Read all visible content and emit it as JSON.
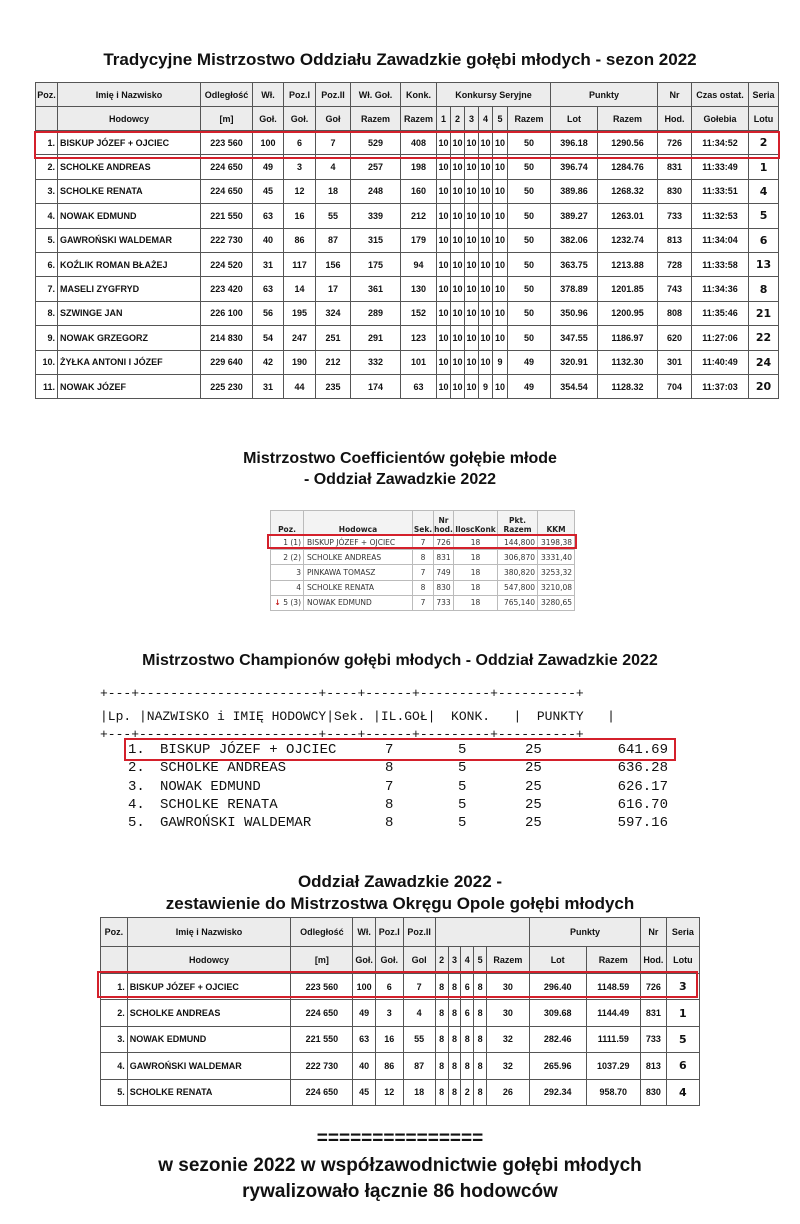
{
  "section1": {
    "title": "Tradycyjne Mistrzostwo Oddziału Zawadzkie gołębi młodych - sezon 2022",
    "header_row1": [
      "Poz.",
      "Imię i Nazwisko",
      "Odległość",
      "Wł.",
      "Poz.I",
      "Poz.II",
      "Wł. Goł.",
      "Konk.",
      "Konkursy Seryjne",
      "Punkty",
      "Nr",
      "Czas ostat.",
      "Seria"
    ],
    "header_row2": [
      "Hodowcy",
      "[m]",
      "Goł.",
      "Goł.",
      "Goł",
      "Razem",
      "Razem",
      "1",
      "2",
      "3",
      "4",
      "5",
      "Razem",
      "Lot",
      "Razem",
      "Hod.",
      "Gołebia",
      "Lotu"
    ],
    "rows": [
      [
        "1.",
        "BISKUP JÓZEF + OJCIEC",
        "223 560",
        "100",
        "6",
        "7",
        "529",
        "408",
        "10",
        "10",
        "10",
        "10",
        "10",
        "50",
        "396.18",
        "1290.56",
        "726",
        "11:34:52",
        "2"
      ],
      [
        "2.",
        "SCHOLKE ANDREAS",
        "224 650",
        "49",
        "3",
        "4",
        "257",
        "198",
        "10",
        "10",
        "10",
        "10",
        "10",
        "50",
        "396.74",
        "1284.76",
        "831",
        "11:33:49",
        "1"
      ],
      [
        "3.",
        "SCHOLKE RENATA",
        "224 650",
        "45",
        "12",
        "18",
        "248",
        "160",
        "10",
        "10",
        "10",
        "10",
        "10",
        "50",
        "389.86",
        "1268.32",
        "830",
        "11:33:51",
        "4"
      ],
      [
        "4.",
        "NOWAK EDMUND",
        "221 550",
        "63",
        "16",
        "55",
        "339",
        "212",
        "10",
        "10",
        "10",
        "10",
        "10",
        "50",
        "389.27",
        "1263.01",
        "733",
        "11:32:53",
        "5"
      ],
      [
        "5.",
        "GAWROŃSKI WALDEMAR",
        "222 730",
        "40",
        "86",
        "87",
        "315",
        "179",
        "10",
        "10",
        "10",
        "10",
        "10",
        "50",
        "382.06",
        "1232.74",
        "813",
        "11:34:04",
        "6"
      ],
      [
        "6.",
        "KOŹLIK ROMAN BŁAŻEJ",
        "224 520",
        "31",
        "117",
        "156",
        "175",
        "94",
        "10",
        "10",
        "10",
        "10",
        "10",
        "50",
        "363.75",
        "1213.88",
        "728",
        "11:33:58",
        "13"
      ],
      [
        "7.",
        "MASELI ZYGFRYD",
        "223 420",
        "63",
        "14",
        "17",
        "361",
        "130",
        "10",
        "10",
        "10",
        "10",
        "10",
        "50",
        "378.89",
        "1201.85",
        "743",
        "11:34:36",
        "8"
      ],
      [
        "8.",
        "SZWINGE JAN",
        "226 100",
        "56",
        "195",
        "324",
        "289",
        "152",
        "10",
        "10",
        "10",
        "10",
        "10",
        "50",
        "350.96",
        "1200.95",
        "808",
        "11:35:46",
        "21"
      ],
      [
        "9.",
        "NOWAK GRZEGORZ",
        "214 830",
        "54",
        "247",
        "251",
        "291",
        "123",
        "10",
        "10",
        "10",
        "10",
        "10",
        "50",
        "347.55",
        "1186.97",
        "620",
        "11:27:06",
        "22"
      ],
      [
        "10.",
        "ŻYŁKA ANTONI I JÓZEF",
        "229 640",
        "42",
        "190",
        "212",
        "332",
        "101",
        "10",
        "10",
        "10",
        "10",
        "9",
        "49",
        "320.91",
        "1132.30",
        "301",
        "11:40:49",
        "24"
      ],
      [
        "11.",
        "NOWAK JÓZEF",
        "225 230",
        "31",
        "44",
        "235",
        "174",
        "63",
        "10",
        "10",
        "10",
        "9",
        "10",
        "49",
        "354.54",
        "1128.32",
        "704",
        "11:37:03",
        "20"
      ]
    ]
  },
  "section2": {
    "title_line1": "Mistrzostwo Coefficientów gołębie młode",
    "title_line2": "- Oddział Zawadzkie 2022",
    "headers": [
      "Poz.",
      "Hodowca",
      "Sek.",
      "Nr hod.",
      "IloscKonk",
      "Pkt. Razem",
      "KKM"
    ],
    "rows": [
      [
        "1 (1)",
        "BISKUP JÓZEF + OJCIEC",
        "7",
        "726",
        "18",
        "144,800",
        "3198,38"
      ],
      [
        "2 (2)",
        "SCHOLKE ANDREAS",
        "8",
        "831",
        "18",
        "306,870",
        "3331,40"
      ],
      [
        "3",
        "PINKAWA TOMASZ",
        "7",
        "749",
        "18",
        "380,820",
        "3253,32"
      ],
      [
        "4",
        "SCHOLKE RENATA",
        "8",
        "830",
        "18",
        "547,800",
        "3210,08"
      ],
      [
        "5 (3)",
        "NOWAK EDMUND",
        "7",
        "733",
        "18",
        "765,140",
        "3280,65"
      ]
    ],
    "down_arrow_row": 4,
    "arrow_color": "#c21a1a"
  },
  "section3": {
    "title": "Mistrzostwo Championów gołębi młodych - Oddział Zawadzkie 2022",
    "separator": "+---+-----------------------+----+------+---------+----------+",
    "header_line": "|Lp. |NAZWISKO i IMIĘ HODOWCY|Sek. |IL.GOŁ|  KONK.   |  PUNKTY   |",
    "rows": [
      [
        "1.",
        "BISKUP JÓZEF + OJCIEC",
        "7",
        "5",
        "25",
        "641.69"
      ],
      [
        "2.",
        "SCHOLKE ANDREAS",
        "8",
        "5",
        "25",
        "636.28"
      ],
      [
        "3.",
        "NOWAK EDMUND",
        "7",
        "5",
        "25",
        "626.17"
      ],
      [
        "4.",
        "SCHOLKE RENATA",
        "8",
        "5",
        "25",
        "616.70"
      ],
      [
        "5.",
        "GAWROŃSKI WALDEMAR",
        "8",
        "5",
        "25",
        "597.16"
      ]
    ]
  },
  "section4": {
    "title_line1": "Oddział Zawadzkie 2022 -",
    "title_line2": "zestawienie do Mistrzostwa Okręgu Opole gołębi młodych",
    "header_row1": [
      "Poz.",
      "Imię i Nazwisko",
      "Odległość",
      "Wł.",
      "Poz.I",
      "Poz.II",
      "",
      "Punkty",
      "Nr",
      "Seria"
    ],
    "header_row2": [
      "Hodowcy",
      "[m]",
      "Goł.",
      "Goł.",
      "Gol",
      "2",
      "3",
      "4",
      "5",
      "Razem",
      "Lot",
      "Razem",
      "Hod.",
      "Lotu"
    ],
    "rows": [
      [
        "1.",
        "BISKUP JÓZEF + OJCIEC",
        "223 560",
        "100",
        "6",
        "7",
        "8",
        "8",
        "6",
        "8",
        "30",
        "296.40",
        "1148.59",
        "726",
        "3"
      ],
      [
        "2.",
        "SCHOLKE ANDREAS",
        "224 650",
        "49",
        "3",
        "4",
        "8",
        "8",
        "6",
        "8",
        "30",
        "309.68",
        "1144.49",
        "831",
        "1"
      ],
      [
        "3.",
        "NOWAK EDMUND",
        "221 550",
        "63",
        "16",
        "55",
        "8",
        "8",
        "8",
        "8",
        "32",
        "282.46",
        "1111.59",
        "733",
        "5"
      ],
      [
        "4.",
        "GAWROŃSKI WALDEMAR",
        "222 730",
        "40",
        "86",
        "87",
        "8",
        "8",
        "8",
        "8",
        "32",
        "265.96",
        "1037.29",
        "813",
        "6"
      ],
      [
        "5.",
        "SCHOLKE RENATA",
        "224 650",
        "45",
        "12",
        "18",
        "8",
        "8",
        "2",
        "8",
        "26",
        "292.34",
        "958.70",
        "830",
        "4"
      ]
    ]
  },
  "footer": {
    "separator": "===============",
    "line1": "w sezonie 2022 w współzawodnictwie gołębi młodych",
    "line2": "rywalizowało łącznie 86 hodowców"
  },
  "highlight_color": "#d4202b"
}
